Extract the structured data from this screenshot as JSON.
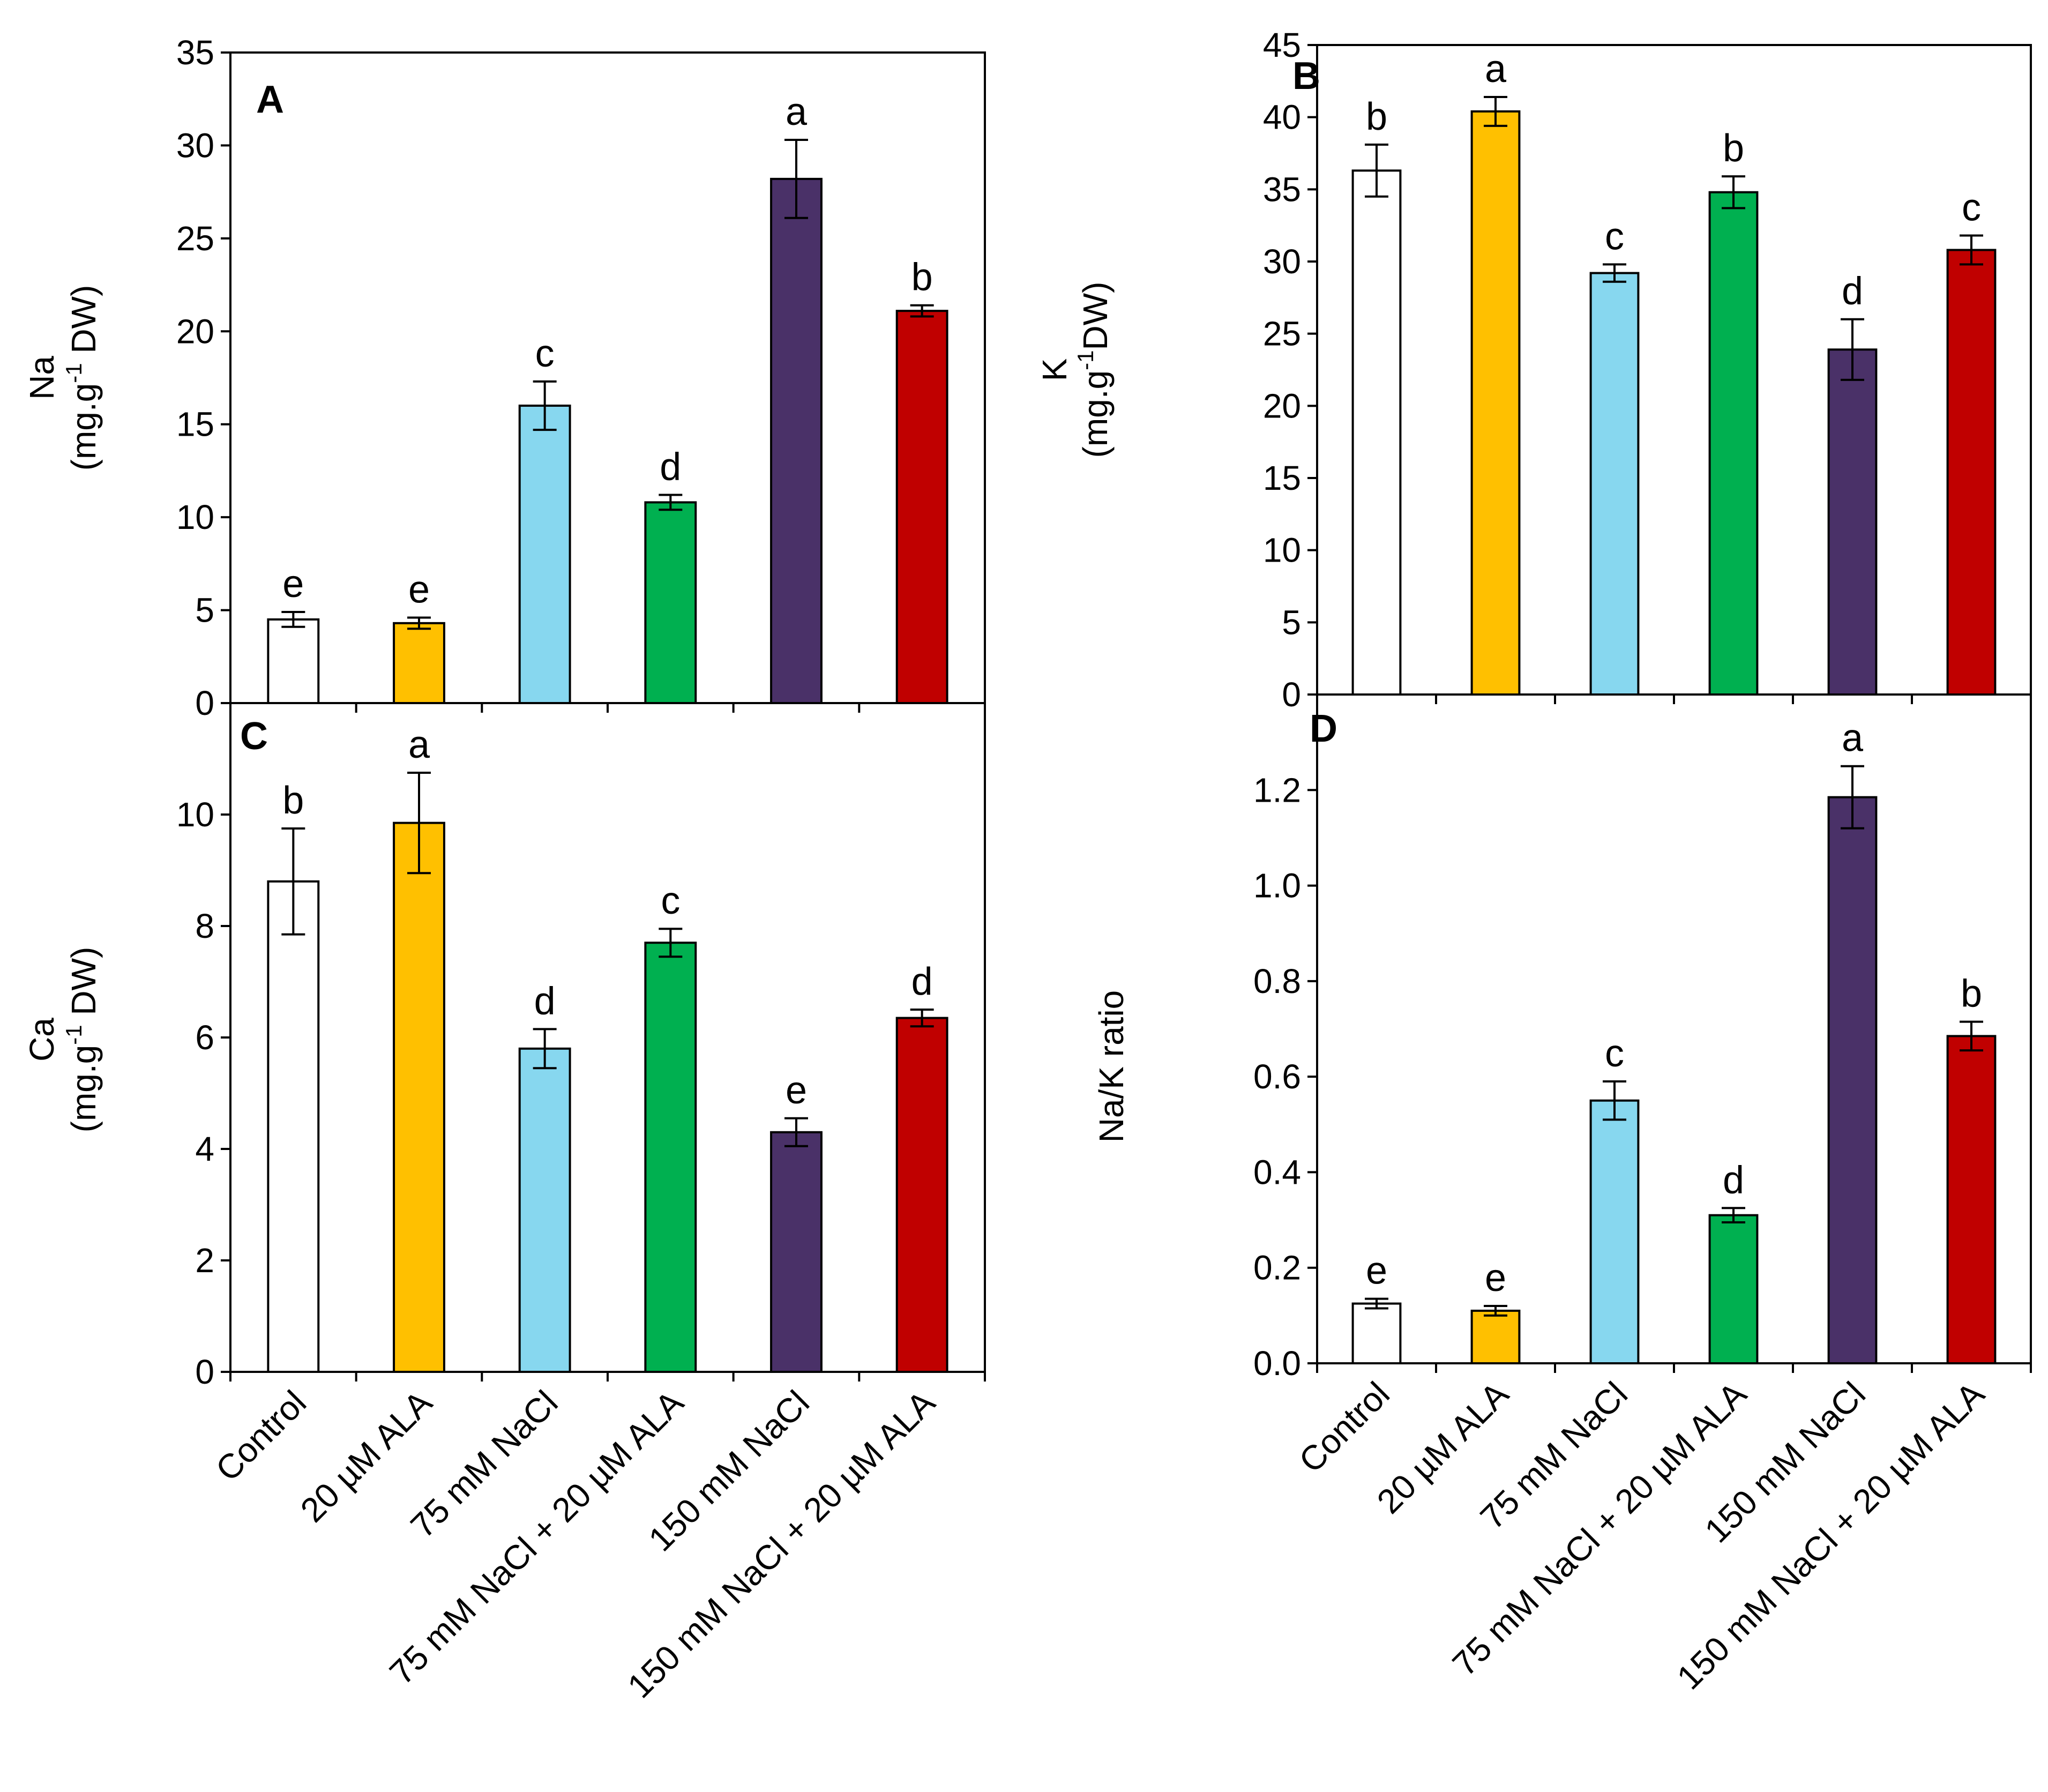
{
  "colors": {
    "control": "#ffffff",
    "ala": "#ffc000",
    "nacl75": "#87d7ef",
    "nacl75_ala": "#00b050",
    "nacl150": "#4a3168",
    "nacl150_ala": "#c00000",
    "outline": "#000000"
  },
  "chart_data": [
    {
      "id": "A",
      "type": "bar",
      "panel_label": "A",
      "categories": [
        "Control",
        "20 µM ALA",
        "75 mM NaCl",
        "75 mM NaCl + 20 µM ALA",
        "150 mM NaCl",
        "150 mM NaCl + 20 µM ALA"
      ],
      "values": [
        4.5,
        4.3,
        16.0,
        10.8,
        28.2,
        21.1
      ],
      "errors": [
        0.4,
        0.3,
        1.3,
        0.4,
        2.1,
        0.3
      ],
      "letters": [
        "e",
        "e",
        "c",
        "d",
        "a",
        "b"
      ],
      "ylabel_line1": "Na",
      "ylabel_line2_pre": "(mg.g",
      "ylabel_sup": "-1",
      "ylabel_line2_post": " DW)",
      "ylim": [
        0,
        35
      ],
      "yticks": [
        "0",
        "5",
        "10",
        "15",
        "20",
        "25",
        "30",
        "35"
      ]
    },
    {
      "id": "B",
      "type": "bar",
      "panel_label": "B",
      "categories": [
        "Control",
        "20 µM ALA",
        "75 mM NaCl",
        "75 mM NaCl + 20 µM ALA",
        "150 mM NaCl",
        "150 mM NaCl + 20 µM ALA"
      ],
      "values": [
        36.3,
        40.4,
        29.2,
        34.8,
        23.9,
        30.8
      ],
      "errors": [
        1.8,
        1.0,
        0.6,
        1.1,
        2.1,
        1.0
      ],
      "letters": [
        "b",
        "a",
        "c",
        "b",
        "d",
        "c"
      ],
      "ylabel_line1": "K",
      "ylabel_line2_pre": "(mg.g",
      "ylabel_sup": "-1",
      "ylabel_line2_post": "DW)",
      "ylim": [
        0,
        45
      ],
      "yticks": [
        "0",
        "5",
        "10",
        "15",
        "20",
        "25",
        "30",
        "35",
        "40",
        "45"
      ]
    },
    {
      "id": "C",
      "type": "bar",
      "panel_label": "C",
      "categories": [
        "Control",
        "20 µM ALA",
        "75 mM NaCl",
        "75 mM NaCl + 20 µM ALA",
        "150 mM NaCl",
        "150 mM NaCl + 20 µM ALA"
      ],
      "values": [
        8.8,
        9.85,
        5.8,
        7.7,
        4.3,
        6.35
      ],
      "errors": [
        0.95,
        0.9,
        0.35,
        0.25,
        0.25,
        0.15
      ],
      "letters": [
        "b",
        "a",
        "d",
        "c",
        "e",
        "d"
      ],
      "ylabel_line1": "Ca",
      "ylabel_line2_pre": "(mg.g",
      "ylabel_sup": "-1",
      "ylabel_line2_post": " DW)",
      "ylim": [
        0,
        12
      ],
      "yticks": [
        "0",
        "2",
        "4",
        "6",
        "8",
        "10"
      ]
    },
    {
      "id": "D",
      "type": "bar",
      "panel_label": "D",
      "categories": [
        "Control",
        "20 µM ALA",
        "75 mM NaCl",
        "75 mM NaCl + 20 µM ALA",
        "150 mM NaCl",
        "150 mM NaCl + 20 µM ALA"
      ],
      "values": [
        0.125,
        0.11,
        0.55,
        0.31,
        1.185,
        0.685
      ],
      "errors": [
        0.01,
        0.01,
        0.04,
        0.015,
        0.065,
        0.03
      ],
      "letters": [
        "e",
        "e",
        "c",
        "d",
        "a",
        "b"
      ],
      "ylabel_line1": "Na/K ratio",
      "ylim": [
        0,
        1.4
      ],
      "yticks": [
        "0.0",
        "0.2",
        "0.4",
        "0.6",
        "0.8",
        "1.0",
        "1.2"
      ]
    }
  ]
}
